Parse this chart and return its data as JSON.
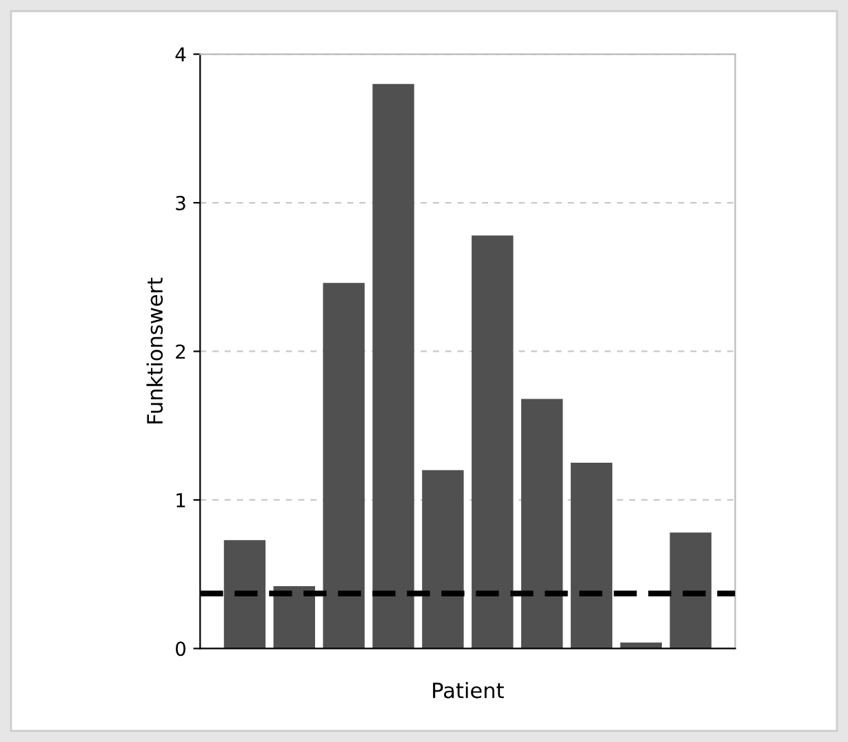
{
  "chart_data": {
    "type": "bar",
    "xlabel": "Patient",
    "ylabel": "Funktionswert",
    "categories": [
      null,
      null,
      null,
      null,
      null,
      null,
      null,
      null,
      null,
      null
    ],
    "values": [
      0.73,
      0.42,
      2.46,
      3.8,
      1.2,
      2.78,
      1.68,
      1.25,
      0.04,
      0.78
    ],
    "color": "#505050",
    "ylim": [
      0,
      4
    ],
    "yticks": [
      0,
      1,
      2,
      3,
      4
    ],
    "grid": "y",
    "ref_lines": [
      {
        "axis": "y",
        "value": 0.37,
        "color": "#000000",
        "line_style": "dashed"
      }
    ]
  }
}
